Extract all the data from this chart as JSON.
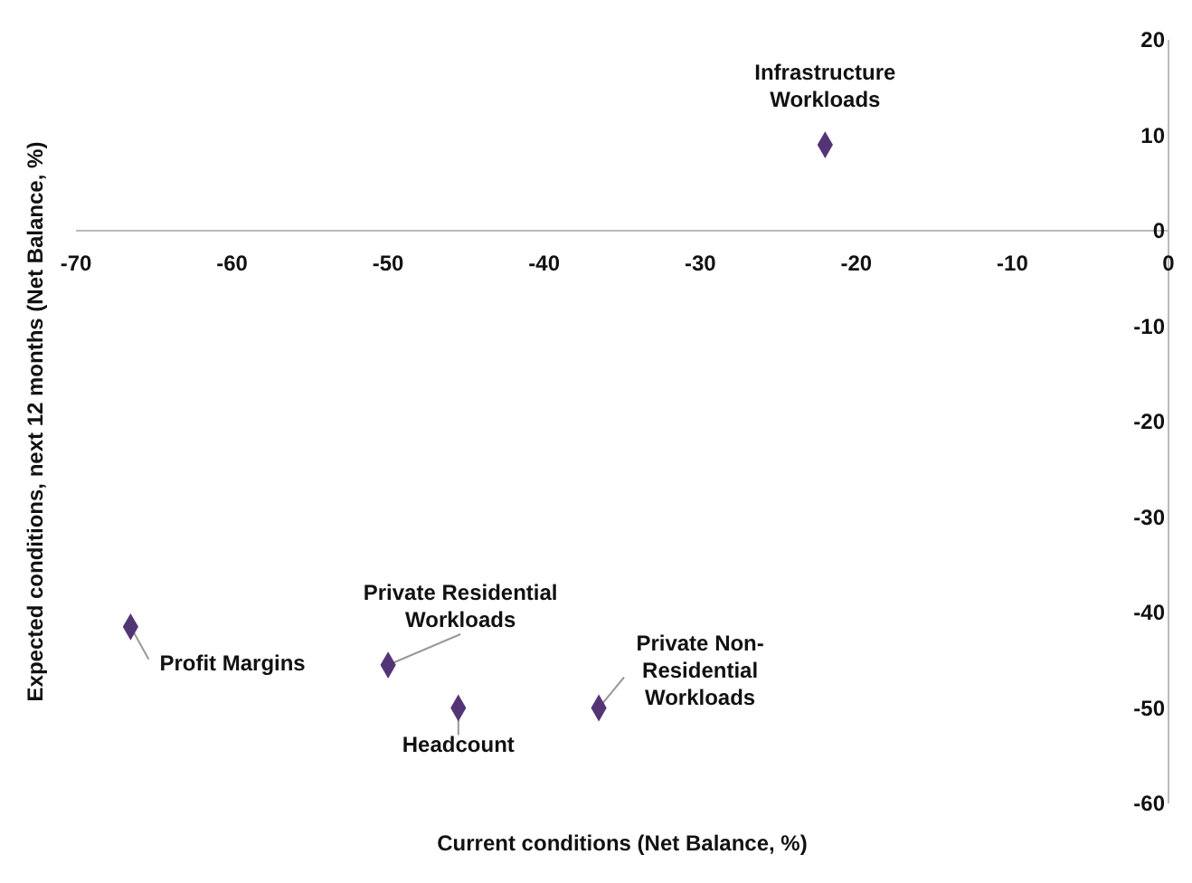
{
  "chart_data": {
    "type": "scatter",
    "xlabel": "Current conditions (Net Balance, %)",
    "ylabel": "Expected conditions, next 12 months (Net Balance, %)",
    "x": [
      -22,
      -66.5,
      -50,
      -45.5,
      -36.5
    ],
    "values": [
      9,
      -41.5,
      -45.5,
      -50,
      -50
    ],
    "color": "#533575",
    "marker": "diamond",
    "xlim": [
      -70,
      0
    ],
    "xticks": [
      -70,
      -60,
      -50,
      -40,
      -30,
      -20,
      -10,
      0
    ],
    "ylim": [
      -60,
      20
    ],
    "yticks": [
      -60,
      -50,
      -40,
      -30,
      -20,
      -10,
      0,
      10,
      20
    ],
    "grid": false,
    "legend": false,
    "annotations": [
      {
        "text": "Infrastructure\nWorkloads",
        "x": -22,
        "y": 9
      },
      {
        "text": "Profit Margins",
        "x": -66.5,
        "y": -41.5
      },
      {
        "text": "Private Residential\nWorkloads",
        "x": -50,
        "y": -45.5
      },
      {
        "text": "Headcount",
        "x": -45.5,
        "y": -50
      },
      {
        "text": "Private Non-\nResidential\nWorkloads",
        "x": -36.5,
        "y": -50
      }
    ]
  }
}
